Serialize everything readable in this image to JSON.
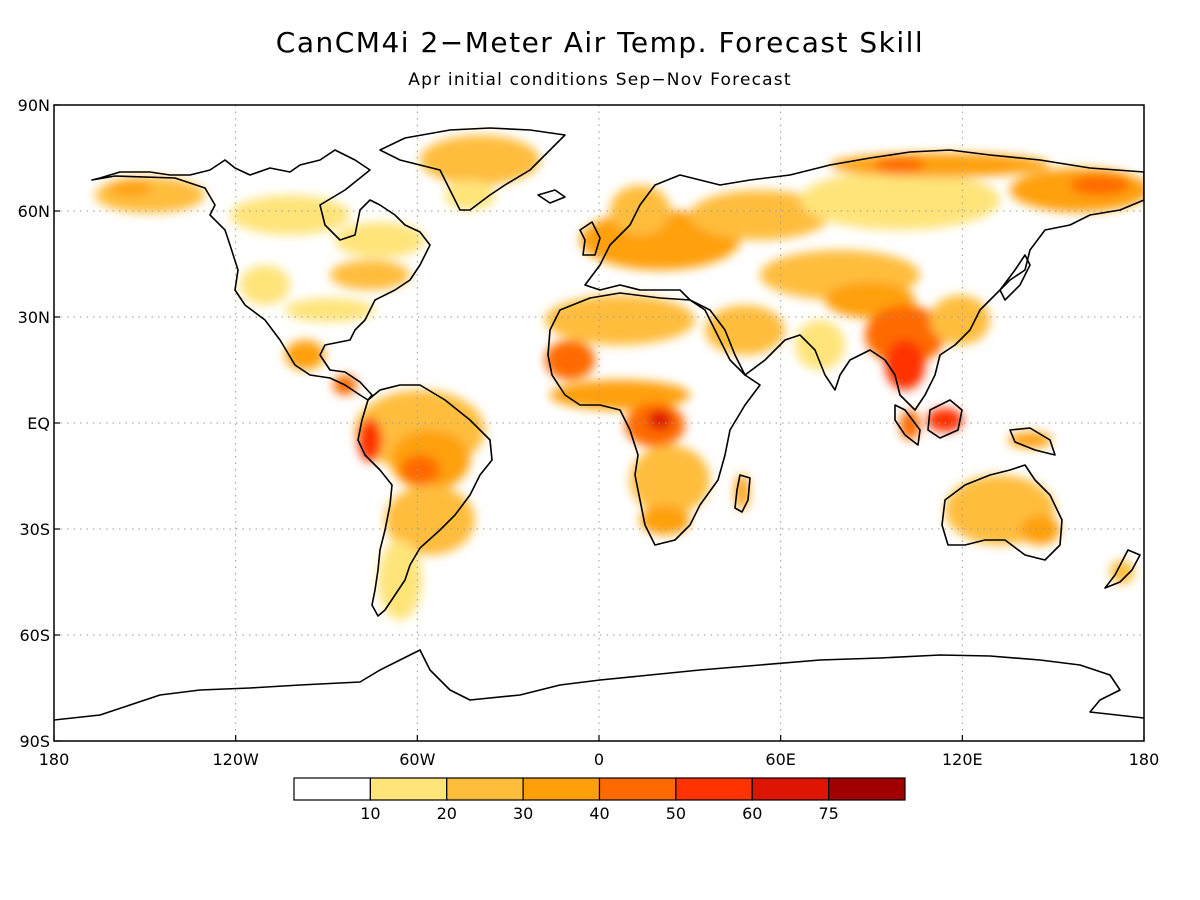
{
  "title": "CanCM4i 2−Meter Air Temp. Forecast Skill",
  "subtitle": "Apr initial conditions   Sep−Nov Forecast",
  "map": {
    "projection": "cylindrical equidistant",
    "lon_range": [
      -180,
      180
    ],
    "lat_range": [
      -90,
      90
    ],
    "lat_ticks": [
      {
        "value": 90,
        "label": "90N"
      },
      {
        "value": 60,
        "label": "60N"
      },
      {
        "value": 30,
        "label": "30N"
      },
      {
        "value": 0,
        "label": "EQ"
      },
      {
        "value": -30,
        "label": "30S"
      },
      {
        "value": -60,
        "label": "60S"
      },
      {
        "value": -90,
        "label": "90S"
      }
    ],
    "lon_ticks": [
      {
        "value": -180,
        "label": "180"
      },
      {
        "value": -120,
        "label": "120W"
      },
      {
        "value": -60,
        "label": "60W"
      },
      {
        "value": 0,
        "label": "0"
      },
      {
        "value": 60,
        "label": "60E"
      },
      {
        "value": 120,
        "label": "120E"
      },
      {
        "value": 180,
        "label": "180"
      }
    ],
    "grid": true
  },
  "colorbar": {
    "colors": [
      "#ffffff",
      "#ffe47a",
      "#ffbd3c",
      "#ffa00a",
      "#ff6a00",
      "#ff3200",
      "#dc1400",
      "#a00000"
    ],
    "labels": [
      "10",
      "20",
      "30",
      "40",
      "50",
      "60",
      "75"
    ]
  },
  "chart_data": {
    "type": "heatmap",
    "title": "CanCM4i 2−Meter Air Temp. Forecast Skill",
    "subtitle": "Apr initial conditions   Sep−Nov Forecast",
    "variable": "2-Meter Air Temperature forecast skill",
    "xlim": [
      -180,
      180
    ],
    "ylim": [
      -90,
      90
    ],
    "levels": [
      10,
      20,
      30,
      40,
      50,
      60,
      75
    ],
    "regions": [
      {
        "lon": -150,
        "lat": 64,
        "value": 30
      },
      {
        "lon": -95,
        "lat": 55,
        "value": 15
      },
      {
        "lon": -78,
        "lat": 42,
        "value": 25
      },
      {
        "lon": -42,
        "lat": 73,
        "value": 30
      },
      {
        "lon": -100,
        "lat": 22,
        "value": 35
      },
      {
        "lon": -60,
        "lat": -8,
        "value": 40
      },
      {
        "lon": -75,
        "lat": -2,
        "value": 55
      },
      {
        "lon": -60,
        "lat": -38,
        "value": 20
      },
      {
        "lon": 5,
        "lat": 12,
        "value": 35
      },
      {
        "lon": 15,
        "lat": 1,
        "value": 55
      },
      {
        "lon": 25,
        "lat": -15,
        "value": 30
      },
      {
        "lon": 30,
        "lat": 55,
        "value": 30
      },
      {
        "lon": 95,
        "lat": 58,
        "value": 15
      },
      {
        "lon": 120,
        "lat": 70,
        "value": 40
      },
      {
        "lon": 80,
        "lat": 30,
        "value": 25
      },
      {
        "lon": 103,
        "lat": 22,
        "value": 50
      },
      {
        "lon": 115,
        "lat": 0,
        "value": 45
      },
      {
        "lon": 135,
        "lat": -25,
        "value": 25
      },
      {
        "lon": 145,
        "lat": -5,
        "value": 30
      }
    ]
  }
}
